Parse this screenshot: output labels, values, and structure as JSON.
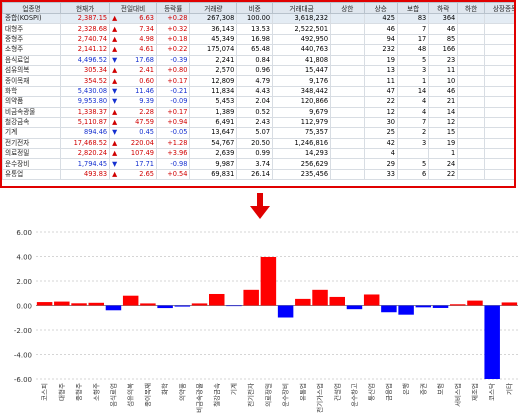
{
  "table": {
    "columns": [
      "업종명",
      "현재가",
      "전일대비",
      "등락률",
      "거래량",
      "비중",
      "거래대금",
      "상한",
      "상승",
      "보합",
      "하락",
      "하한",
      "상장종목수"
    ],
    "rows": [
      {
        "name": "종합(KOSPI)",
        "price": "2,387.15",
        "dir": "up",
        "change": "6.63",
        "rate": "+0.28",
        "volume": "267,308",
        "ratio": "100.00",
        "amount": "3,618,232",
        "upper": "",
        "rise": "425",
        "flat": "83",
        "fall": "364",
        "lower": "",
        "listed": "882"
      },
      {
        "name": "대형주",
        "price": "2,328.68",
        "dir": "up",
        "change": "7.34",
        "rate": "+0.32",
        "volume": "36,143",
        "ratio": "13.53",
        "amount": "2,522,501",
        "upper": "",
        "rise": "46",
        "flat": "7",
        "fall": "46",
        "lower": "",
        "listed": "100"
      },
      {
        "name": "중형주",
        "price": "2,740.74",
        "dir": "up",
        "change": "4.98",
        "rate": "+0.18",
        "volume": "45,349",
        "ratio": "16.98",
        "amount": "492,950",
        "upper": "",
        "rise": "94",
        "flat": "17",
        "fall": "85",
        "lower": "",
        "listed": "200"
      },
      {
        "name": "소형주",
        "price": "2,141.12",
        "dir": "up",
        "change": "4.61",
        "rate": "+0.22",
        "volume": "175,074",
        "ratio": "65.48",
        "amount": "440,763",
        "upper": "",
        "rise": "232",
        "flat": "48",
        "fall": "166",
        "lower": "",
        "listed": "450"
      },
      {
        "name": "음식료업",
        "price": "4,496.52",
        "dir": "dn",
        "change": "17.68",
        "rate": "-0.39",
        "volume": "2,241",
        "ratio": "0.84",
        "amount": "41,808",
        "upper": "",
        "rise": "19",
        "flat": "5",
        "fall": "23",
        "lower": "",
        "listed": "48"
      },
      {
        "name": "섬유의복",
        "price": "305.34",
        "dir": "up",
        "change": "2.41",
        "rate": "+0.80",
        "volume": "2,570",
        "ratio": "0.96",
        "amount": "15,447",
        "upper": "",
        "rise": "13",
        "flat": "3",
        "fall": "11",
        "lower": "",
        "listed": "27"
      },
      {
        "name": "종이목재",
        "price": "354.52",
        "dir": "up",
        "change": "0.60",
        "rate": "+0.17",
        "volume": "12,809",
        "ratio": "4.79",
        "amount": "9,176",
        "upper": "",
        "rise": "11",
        "flat": "1",
        "fall": "10",
        "lower": "",
        "listed": "22"
      },
      {
        "name": "화학",
        "price": "5,430.08",
        "dir": "dn",
        "change": "11.46",
        "rate": "-0.21",
        "volume": "11,834",
        "ratio": "4.43",
        "amount": "348,442",
        "upper": "",
        "rise": "47",
        "flat": "14",
        "fall": "46",
        "lower": "",
        "listed": "107"
      },
      {
        "name": "의약품",
        "price": "9,953.80",
        "dir": "dn",
        "change": "9.39",
        "rate": "-0.09",
        "volume": "5,453",
        "ratio": "2.04",
        "amount": "120,866",
        "upper": "",
        "rise": "22",
        "flat": "4",
        "fall": "21",
        "lower": "",
        "listed": "47"
      },
      {
        "name": "비금속광물",
        "price": "1,338.37",
        "dir": "up",
        "change": "2.28",
        "rate": "+0.17",
        "volume": "1,389",
        "ratio": "0.52",
        "amount": "9,679",
        "upper": "",
        "rise": "12",
        "flat": "4",
        "fall": "14",
        "lower": "",
        "listed": "30"
      },
      {
        "name": "철강금속",
        "price": "5,110.87",
        "dir": "up",
        "change": "47.59",
        "rate": "+0.94",
        "volume": "6,491",
        "ratio": "2.43",
        "amount": "112,979",
        "upper": "",
        "rise": "30",
        "flat": "7",
        "fall": "12",
        "lower": "",
        "listed": "49"
      },
      {
        "name": "기계",
        "price": "894.46",
        "dir": "dn",
        "change": "0.45",
        "rate": "-0.05",
        "volume": "13,647",
        "ratio": "5.07",
        "amount": "75,357",
        "upper": "",
        "rise": "25",
        "flat": "2",
        "fall": "15",
        "lower": "",
        "listed": "42"
      },
      {
        "name": "전기전자",
        "price": "17,468.52",
        "dir": "up",
        "change": "220.04",
        "rate": "+1.28",
        "volume": "54,767",
        "ratio": "20.50",
        "amount": "1,246,816",
        "upper": "",
        "rise": "42",
        "flat": "3",
        "fall": "19",
        "lower": "",
        "listed": "64"
      },
      {
        "name": "의료정밀",
        "price": "2,820.24",
        "dir": "up",
        "change": "107.49",
        "rate": "+3.96",
        "volume": "2,639",
        "ratio": "0.99",
        "amount": "14,293",
        "upper": "",
        "rise": "4",
        "flat": "",
        "fall": "1",
        "lower": "",
        "listed": "5"
      },
      {
        "name": "운수장비",
        "price": "1,794.45",
        "dir": "dn",
        "change": "17.71",
        "rate": "-0.98",
        "volume": "9,987",
        "ratio": "3.74",
        "amount": "256,629",
        "upper": "",
        "rise": "29",
        "flat": "5",
        "fall": "24",
        "lower": "",
        "listed": "58"
      },
      {
        "name": "유통업",
        "price": "493.83",
        "dir": "up",
        "change": "2.65",
        "rate": "+0.54",
        "volume": "69,831",
        "ratio": "26.14",
        "amount": "235,456",
        "upper": "",
        "rise": "33",
        "flat": "6",
        "fall": "22",
        "lower": "",
        "listed": "62"
      }
    ]
  },
  "arrow_color": "#e00000",
  "chart_data": {
    "type": "bar",
    "categories": [
      "코스피",
      "대형주",
      "중형주",
      "소형주",
      "음식료업",
      "섬유의복",
      "종이목재",
      "화학",
      "의약품",
      "비금속광물",
      "철강금속",
      "기계",
      "전기전자",
      "의료정밀",
      "운수장비",
      "유통업",
      "전기가스업",
      "건설업",
      "운수창고",
      "통신업",
      "금융업",
      "은행",
      "증권",
      "보험",
      "서비스업",
      "제조업",
      "코스닥",
      "기타"
    ],
    "values": [
      0.28,
      0.32,
      0.18,
      0.22,
      -0.39,
      0.8,
      0.17,
      -0.21,
      -0.09,
      0.17,
      0.94,
      -0.05,
      1.28,
      3.96,
      -0.98,
      0.54,
      1.28,
      0.7,
      -0.3,
      0.9,
      -0.55,
      -0.75,
      -0.15,
      -0.2,
      0.1,
      0.4,
      -6.0,
      0.25
    ],
    "ylim": [
      -6,
      6
    ],
    "yticks": [
      "6.00",
      "4.00",
      "2.00",
      "0.00",
      "-2.00",
      "-4.00",
      "-6.00"
    ],
    "pos_color": "#ff0000",
    "neg_color": "#0000ff"
  }
}
